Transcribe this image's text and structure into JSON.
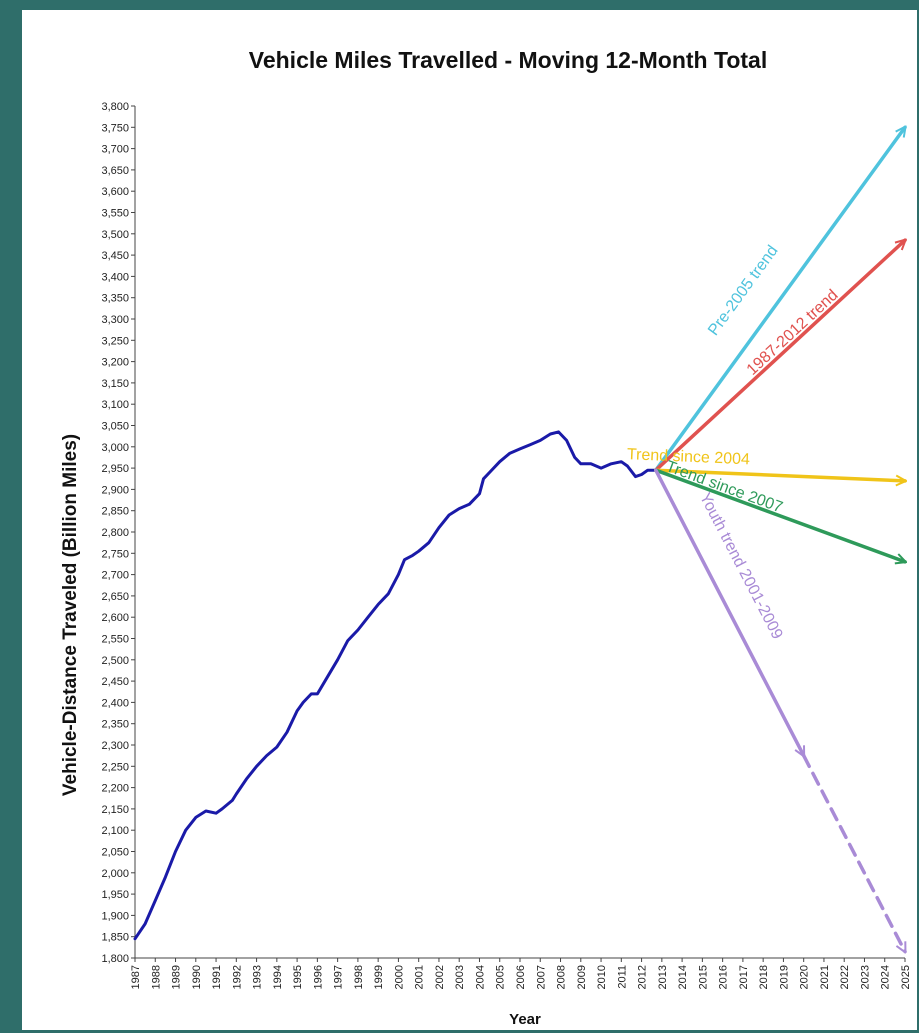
{
  "chart_data": {
    "type": "line",
    "title": "Vehicle Miles Travelled - Moving 12-Month Total",
    "xlabel": "Year",
    "ylabel": "Vehicle-Distance Traveled (Billion Miles)",
    "xlim": [
      1987,
      2025
    ],
    "ylim": [
      1800,
      3800
    ],
    "ytick_step": 50,
    "xticks": [
      "1987",
      "1988",
      "1989",
      "1990",
      "1991",
      "1992",
      "1993",
      "1994",
      "1995",
      "1996",
      "1997",
      "1998",
      "1999",
      "2000",
      "2001",
      "2002",
      "2003",
      "2004",
      "2005",
      "2006",
      "2007",
      "2008",
      "2009",
      "2010",
      "2011",
      "2012",
      "2013",
      "2014",
      "2015",
      "2016",
      "2017",
      "2018",
      "2019",
      "2020",
      "2021",
      "2022",
      "2023",
      "2024",
      "2025"
    ],
    "grid": false,
    "colors": {
      "historical": "#1a1aa8",
      "pre2005": "#4fc3dd",
      "trend1987_2012": "#e0524f",
      "since2004": "#f0c419",
      "since2007": "#2e9a5a",
      "youth": "#a98bd6"
    },
    "series": [
      {
        "key": "historical",
        "style": "solid",
        "x": [
          1987.0,
          1987.5,
          1988.0,
          1988.5,
          1989.0,
          1989.5,
          1990.0,
          1990.5,
          1991.0,
          1991.3,
          1991.8,
          1992.0,
          1992.5,
          1993.0,
          1993.5,
          1994.0,
          1994.5,
          1995.0,
          1995.3,
          1995.7,
          1996.0,
          1996.5,
          1997.0,
          1997.5,
          1998.0,
          1998.5,
          1999.0,
          1999.5,
          2000.0,
          2000.3,
          2000.7,
          2001.0,
          2001.5,
          2002.0,
          2002.5,
          2003.0,
          2003.5,
          2004.0,
          2004.2,
          2004.5,
          2005.0,
          2005.5,
          2006.0,
          2006.5,
          2007.0,
          2007.5,
          2007.9,
          2008.3,
          2008.7,
          2009.0,
          2009.5,
          2010.0,
          2010.5,
          2011.0,
          2011.3,
          2011.7,
          2012.0,
          2012.3,
          2012.7
        ],
        "y": [
          1845,
          1880,
          1935,
          1990,
          2050,
          2100,
          2130,
          2145,
          2140,
          2150,
          2170,
          2185,
          2220,
          2250,
          2275,
          2295,
          2330,
          2380,
          2400,
          2420,
          2420,
          2460,
          2500,
          2545,
          2570,
          2600,
          2630,
          2655,
          2700,
          2735,
          2745,
          2755,
          2775,
          2810,
          2840,
          2855,
          2865,
          2890,
          2925,
          2940,
          2965,
          2985,
          2995,
          3005,
          3015,
          3030,
          3035,
          3015,
          2975,
          2960,
          2960,
          2950,
          2960,
          2965,
          2955,
          2930,
          2935,
          2945,
          2945
        ]
      },
      {
        "key": "pre2005",
        "style": "arrow",
        "x": [
          2012.7,
          2025.0
        ],
        "y": [
          2945,
          3750
        ]
      },
      {
        "key": "trend1987_2012",
        "style": "arrow",
        "x": [
          2012.7,
          2025.0
        ],
        "y": [
          2945,
          3485
        ]
      },
      {
        "key": "since2004",
        "style": "arrow",
        "x": [
          2012.7,
          2025.0
        ],
        "y": [
          2945,
          2920
        ]
      },
      {
        "key": "since2007",
        "style": "arrow",
        "x": [
          2012.7,
          2025.0
        ],
        "y": [
          2945,
          2730
        ]
      },
      {
        "key": "youth",
        "style": "arrow",
        "x": [
          2012.7,
          2020.0
        ],
        "y": [
          2945,
          2275
        ]
      },
      {
        "key": "youth_dashed",
        "style": "dashed-arrow",
        "x": [
          2020.0,
          2025.0
        ],
        "y": [
          2275,
          1815
        ]
      }
    ],
    "annotations": [
      {
        "text": "Pre-2005 trend",
        "color_key": "pre2005",
        "x": 2017.2,
        "y": 3360
      },
      {
        "text": "1987-2012 trend",
        "color_key": "trend1987_2012",
        "x": 2019.6,
        "y": 3260
      },
      {
        "text": "Trend since 2004",
        "color_key": "since2004",
        "x": 2014.3,
        "y": 2965
      },
      {
        "text": "Trend since 2007",
        "color_key": "since2007",
        "x": 2016.0,
        "y": 2895
      },
      {
        "text": "Youth trend 2001-2009",
        "color_key": "youth",
        "x": 2016.7,
        "y": 2715
      }
    ]
  }
}
